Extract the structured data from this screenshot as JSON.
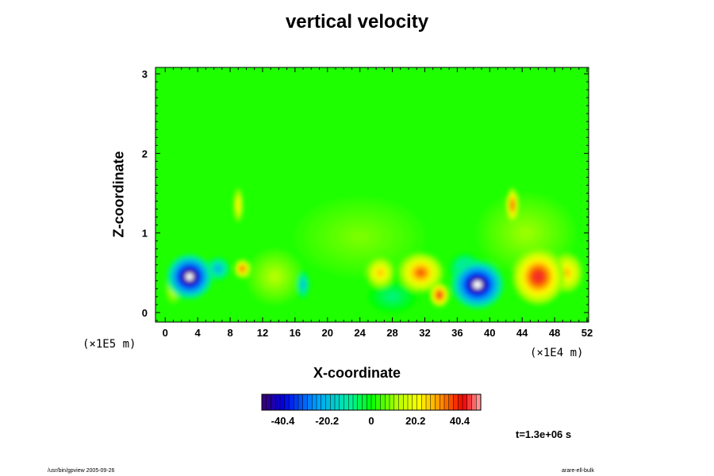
{
  "chart_data": {
    "type": "heatmap",
    "title": "vertical velocity",
    "xlabel": "X-coordinate",
    "ylabel": "Z-coordinate",
    "x_unit": "(×1E4 m)",
    "y_unit": "(×1E5 m)",
    "xlim": [
      -1.2,
      52.2
    ],
    "ylim": [
      -0.12,
      3.08
    ],
    "x_ticks": [
      0,
      4,
      8,
      12,
      16,
      20,
      24,
      28,
      32,
      36,
      40,
      44,
      48,
      52
    ],
    "y_ticks": [
      0,
      1,
      2,
      3
    ],
    "colorbar": {
      "ticks": [
        -40.4,
        -20.2,
        0,
        20.2,
        40.4
      ],
      "range": [
        -50,
        50
      ],
      "colormap": "rainbow"
    },
    "background_value": 2,
    "features": [
      {
        "x": 3.0,
        "z": 0.45,
        "value": -58,
        "rx": 2.8,
        "rz": 0.28
      },
      {
        "x": 6.5,
        "z": 0.55,
        "value": -22,
        "rx": 1.5,
        "rz": 0.15
      },
      {
        "x": 9.5,
        "z": 0.55,
        "value": 38,
        "rx": 1.0,
        "rz": 0.12
      },
      {
        "x": 9.0,
        "z": 1.35,
        "value": 26,
        "rx": 0.6,
        "rz": 0.22
      },
      {
        "x": 17.0,
        "z": 0.35,
        "value": -20,
        "rx": 0.8,
        "rz": 0.18
      },
      {
        "x": 13.5,
        "z": 0.45,
        "value": 12,
        "rx": 3.5,
        "rz": 0.35
      },
      {
        "x": 26.5,
        "z": 0.5,
        "value": 28,
        "rx": 1.8,
        "rz": 0.2
      },
      {
        "x": 31.5,
        "z": 0.5,
        "value": 36,
        "rx": 2.8,
        "rz": 0.25
      },
      {
        "x": 33.8,
        "z": 0.22,
        "value": 44,
        "rx": 1.2,
        "rz": 0.15
      },
      {
        "x": 38.5,
        "z": 0.35,
        "value": -56,
        "rx": 3.2,
        "rz": 0.3
      },
      {
        "x": 37.0,
        "z": 0.55,
        "value": -18,
        "rx": 2.0,
        "rz": 0.2
      },
      {
        "x": 42.8,
        "z": 1.35,
        "value": 40,
        "rx": 0.7,
        "rz": 0.22
      },
      {
        "x": 46.0,
        "z": 0.45,
        "value": 44,
        "rx": 3.2,
        "rz": 0.35
      },
      {
        "x": 49.5,
        "z": 0.5,
        "value": 28,
        "rx": 2.0,
        "rz": 0.25
      },
      {
        "x": 24.0,
        "z": 0.95,
        "value": 8,
        "rx": 8.0,
        "rz": 0.5
      },
      {
        "x": 44.5,
        "z": 1.0,
        "value": 10,
        "rx": 6.0,
        "rz": 0.5
      },
      {
        "x": 28.0,
        "z": 0.2,
        "value": -8,
        "rx": 3.0,
        "rz": 0.2
      },
      {
        "x": 1.0,
        "z": 0.3,
        "value": 16,
        "rx": 1.0,
        "rz": 0.2
      }
    ]
  },
  "annotations": {
    "time": "t=1.3e+06 s",
    "footer_left": "/usr/bin/gpview 2005-09-26",
    "footer_right": "arare-ell-bulk"
  }
}
